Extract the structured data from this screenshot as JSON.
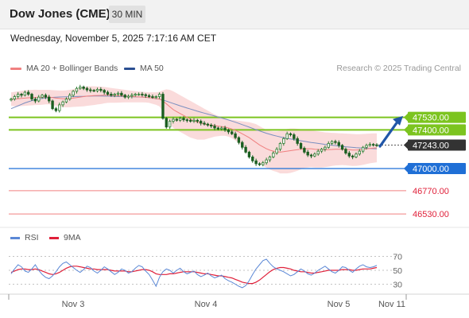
{
  "header": {
    "title": "Dow Jones (CME)",
    "timeframe": "30 MIN"
  },
  "datetime": "Wednesday, November 5, 2025 7:17:16 AM CET",
  "legend": {
    "ma20_label": "MA 20 + Bollinger Bands",
    "ma50_label": "MA 50",
    "credit": "Research © 2025 Trading Central"
  },
  "lower_legend": {
    "rsi_label": "RSI",
    "ma9_label": "9MA"
  },
  "colors": {
    "candle_up": "#2e7d32",
    "candle_down": "#1b5e20",
    "bollinger_fill": "#f8cfcf",
    "ma20": "#f08080",
    "ma50": "#7b8fc0",
    "resistance": "#7cc41f",
    "support": "#1f6fd6",
    "lower_support": "#f08080",
    "arrow": "#2056a8",
    "current_price_bg": "#333333",
    "rsi": "#5b88d6",
    "rsi_ma": "#e0203a"
  },
  "chart_data": [
    {
      "type": "line",
      "name": "price",
      "x_labels": [
        "Nov 3",
        "Nov 4",
        "Nov 5",
        "Nov 11"
      ],
      "ylim": [
        46440,
        47840
      ],
      "levels": [
        {
          "value": 47530,
          "label": "47530.00",
          "kind": "resistance"
        },
        {
          "value": 47400,
          "label": "47400.00",
          "kind": "resistance"
        },
        {
          "value": 47243,
          "label": "47243.00",
          "kind": "current"
        },
        {
          "value": 47000,
          "label": "47000.00",
          "kind": "support"
        },
        {
          "value": 46770,
          "label": "46770.00",
          "kind": "lower_support"
        },
        {
          "value": 46530,
          "label": "46530.00",
          "kind": "lower_support"
        }
      ],
      "forecast_arrow": {
        "from": 47230,
        "to": 47520
      },
      "price_series": [
        47720,
        47745,
        47770,
        47760,
        47790,
        47770,
        47720,
        47700,
        47740,
        47760,
        47740,
        47700,
        47620,
        47600,
        47660,
        47690,
        47720,
        47760,
        47800,
        47830,
        47845,
        47830,
        47815,
        47810,
        47805,
        47820,
        47810,
        47790,
        47770,
        47760,
        47770,
        47780,
        47760,
        47740,
        47750,
        47760,
        47770,
        47770,
        47765,
        47755,
        47745,
        47740,
        47745,
        47770,
        47520,
        47430,
        47490,
        47510,
        47500,
        47520,
        47505,
        47500,
        47490,
        47500,
        47490,
        47470,
        47460,
        47450,
        47440,
        47420,
        47410,
        47420,
        47400,
        47380,
        47360,
        47320,
        47270,
        47220,
        47170,
        47120,
        47080,
        47050,
        47040,
        47060,
        47090,
        47120,
        47160,
        47200,
        47260,
        47310,
        47360,
        47350,
        47310,
        47260,
        47210,
        47170,
        47140,
        47130,
        47150,
        47180,
        47200,
        47220,
        47260,
        47280,
        47270,
        47240,
        47200,
        47160,
        47130,
        47120,
        47150,
        47180,
        47220,
        47240,
        47250,
        47245,
        47243
      ],
      "ma20": [
        47720,
        47720,
        47722,
        47726,
        47730,
        47733,
        47735,
        47737,
        47737,
        47738,
        47740,
        47740,
        47735,
        47730,
        47726,
        47722,
        47722,
        47725,
        47730,
        47735,
        47740,
        47745,
        47750,
        47753,
        47755,
        47757,
        47758,
        47760,
        47760,
        47758,
        47756,
        47754,
        47752,
        47750,
        47748,
        47746,
        47744,
        47742,
        47740,
        47738,
        47735,
        47730,
        47725,
        47720,
        47700,
        47670,
        47640,
        47610,
        47590,
        47570,
        47550,
        47530,
        47510,
        47495,
        47480,
        47470,
        47460,
        47455,
        47450,
        47445,
        47440,
        47435,
        47430,
        47420,
        47410,
        47395,
        47380,
        47360,
        47340,
        47320,
        47295,
        47270,
        47245,
        47225,
        47205,
        47190,
        47180,
        47175,
        47170,
        47175,
        47180,
        47185,
        47190,
        47195,
        47200,
        47205,
        47205,
        47205,
        47200,
        47198,
        47195,
        47195,
        47196,
        47198,
        47200,
        47200,
        47200,
        47198,
        47195,
        47192,
        47192,
        47194,
        47198,
        47203,
        47208,
        47212,
        47215
      ],
      "ma50": [
        47620,
        47635,
        47650,
        47665,
        47680,
        47692,
        47703,
        47712,
        47720,
        47726,
        47731,
        47735,
        47737,
        47739,
        47741,
        47742,
        47743,
        47744,
        47745,
        47746,
        47747,
        47748,
        47749,
        47750,
        47751,
        47751,
        47751,
        47750,
        47750,
        47749,
        47748,
        47747,
        47746,
        47745,
        47744,
        47743,
        47742,
        47741,
        47740,
        47738,
        47735,
        47730,
        47725,
        47720,
        47710,
        47698,
        47686,
        47674,
        47662,
        47650,
        47638,
        47627,
        47616,
        47605,
        47594,
        47584,
        47574,
        47564,
        47554,
        47544,
        47534,
        47524,
        47514,
        47503,
        47492,
        47480,
        47468,
        47455,
        47442,
        47429,
        47416,
        47403,
        47390,
        47378,
        47366,
        47355,
        47345,
        47336,
        47328,
        47320,
        47312,
        47306,
        47300,
        47294,
        47288,
        47282,
        47276,
        47270,
        47265,
        47260,
        47255,
        47250,
        47246,
        47242,
        47238,
        47234,
        47230,
        47226,
        47222,
        47219,
        47216,
        47214,
        47212,
        47210,
        47208,
        47206,
        47205
      ],
      "bb_upper": [
        47790,
        47795,
        47800,
        47805,
        47810,
        47813,
        47815,
        47816,
        47815,
        47815,
        47815,
        47815,
        47812,
        47810,
        47808,
        47808,
        47810,
        47815,
        47822,
        47830,
        47838,
        47845,
        47850,
        47852,
        47852,
        47850,
        47848,
        47845,
        47840,
        47835,
        47830,
        47825,
        47820,
        47815,
        47810,
        47806,
        47802,
        47798,
        47795,
        47792,
        47790,
        47790,
        47790,
        47795,
        47810,
        47820,
        47815,
        47800,
        47780,
        47760,
        47740,
        47720,
        47700,
        47680,
        47660,
        47640,
        47620,
        47600,
        47580,
        47560,
        47545,
        47530,
        47520,
        47510,
        47505,
        47500,
        47495,
        47490,
        47485,
        47480,
        47470,
        47460,
        47440,
        47420,
        47400,
        47390,
        47385,
        47385,
        47390,
        47400,
        47410,
        47415,
        47415,
        47412,
        47408,
        47404,
        47400,
        47395,
        47390,
        47385,
        47380,
        47375,
        47372,
        47370,
        47368,
        47366,
        47364,
        47362,
        47360,
        47358,
        47356,
        47356,
        47358,
        47360,
        47362,
        47364,
        47365
      ],
      "bb_lower": [
        47650,
        47646,
        47644,
        47647,
        47650,
        47653,
        47655,
        47658,
        47659,
        47661,
        47665,
        47665,
        47658,
        47650,
        47644,
        47636,
        47634,
        47635,
        47638,
        47640,
        47642,
        47645,
        47650,
        47654,
        47658,
        47664,
        47668,
        47675,
        47680,
        47681,
        47682,
        47683,
        47684,
        47685,
        47686,
        47686,
        47686,
        47686,
        47685,
        47684,
        47680,
        47670,
        47660,
        47645,
        47590,
        47520,
        47465,
        47420,
        47400,
        47380,
        47360,
        47340,
        47320,
        47310,
        47300,
        47300,
        47300,
        47310,
        47320,
        47330,
        47335,
        47340,
        47340,
        47330,
        47315,
        47290,
        47265,
        47230,
        47195,
        47160,
        47120,
        47080,
        47050,
        47030,
        47010,
        46990,
        46975,
        46965,
        46950,
        46950,
        46950,
        46955,
        46965,
        46978,
        46992,
        47006,
        47010,
        47015,
        47010,
        47011,
        47010,
        47015,
        47020,
        47026,
        47032,
        47034,
        47036,
        47034,
        47030,
        47026,
        47028,
        47032,
        47038,
        47046,
        47054,
        47060,
        47065
      ]
    },
    {
      "type": "line",
      "name": "RSI",
      "ylim": [
        18,
        82
      ],
      "ticks": [
        70,
        50,
        30
      ],
      "rsi": [
        45,
        52,
        58,
        55,
        49,
        47,
        52,
        58,
        50,
        44,
        40,
        38,
        42,
        48,
        55,
        60,
        62,
        58,
        54,
        50,
        47,
        51,
        56,
        54,
        49,
        46,
        50,
        55,
        52,
        48,
        44,
        47,
        52,
        50,
        46,
        48,
        53,
        57,
        55,
        49,
        44,
        36,
        27,
        40,
        48,
        52,
        50,
        46,
        50,
        53,
        48,
        45,
        47,
        49,
        44,
        41,
        43,
        46,
        42,
        39,
        41,
        43,
        38,
        35,
        33,
        30,
        27,
        25,
        28,
        35,
        44,
        52,
        58,
        64,
        66,
        60,
        55,
        52,
        50,
        48,
        45,
        42,
        44,
        48,
        52,
        49,
        45,
        43,
        46,
        50,
        53,
        56,
        52,
        48,
        46,
        50,
        55,
        54,
        50,
        47,
        52,
        56,
        58,
        55,
        54,
        55,
        57
      ],
      "ma9": [
        47,
        49,
        51,
        52,
        52,
        51,
        51,
        52,
        51,
        49,
        47,
        45,
        44,
        45,
        47,
        50,
        53,
        55,
        56,
        56,
        55,
        54,
        53,
        52,
        52,
        51,
        51,
        51,
        51,
        50,
        49,
        49,
        49,
        49,
        48,
        48,
        49,
        50,
        51,
        51,
        50,
        48,
        45,
        44,
        44,
        44,
        45,
        45,
        46,
        47,
        48,
        48,
        48,
        48,
        47,
        46,
        45,
        45,
        44,
        43,
        42,
        42,
        41,
        40,
        39,
        37,
        35,
        33,
        32,
        31,
        31,
        33,
        36,
        40,
        44,
        48,
        51,
        53,
        54,
        54,
        53,
        52,
        50,
        49,
        48,
        48,
        47,
        46,
        46,
        47,
        48,
        49,
        50,
        50,
        50,
        50,
        51,
        51,
        51,
        50,
        50,
        51,
        52,
        52,
        52,
        53,
        54
      ]
    }
  ]
}
